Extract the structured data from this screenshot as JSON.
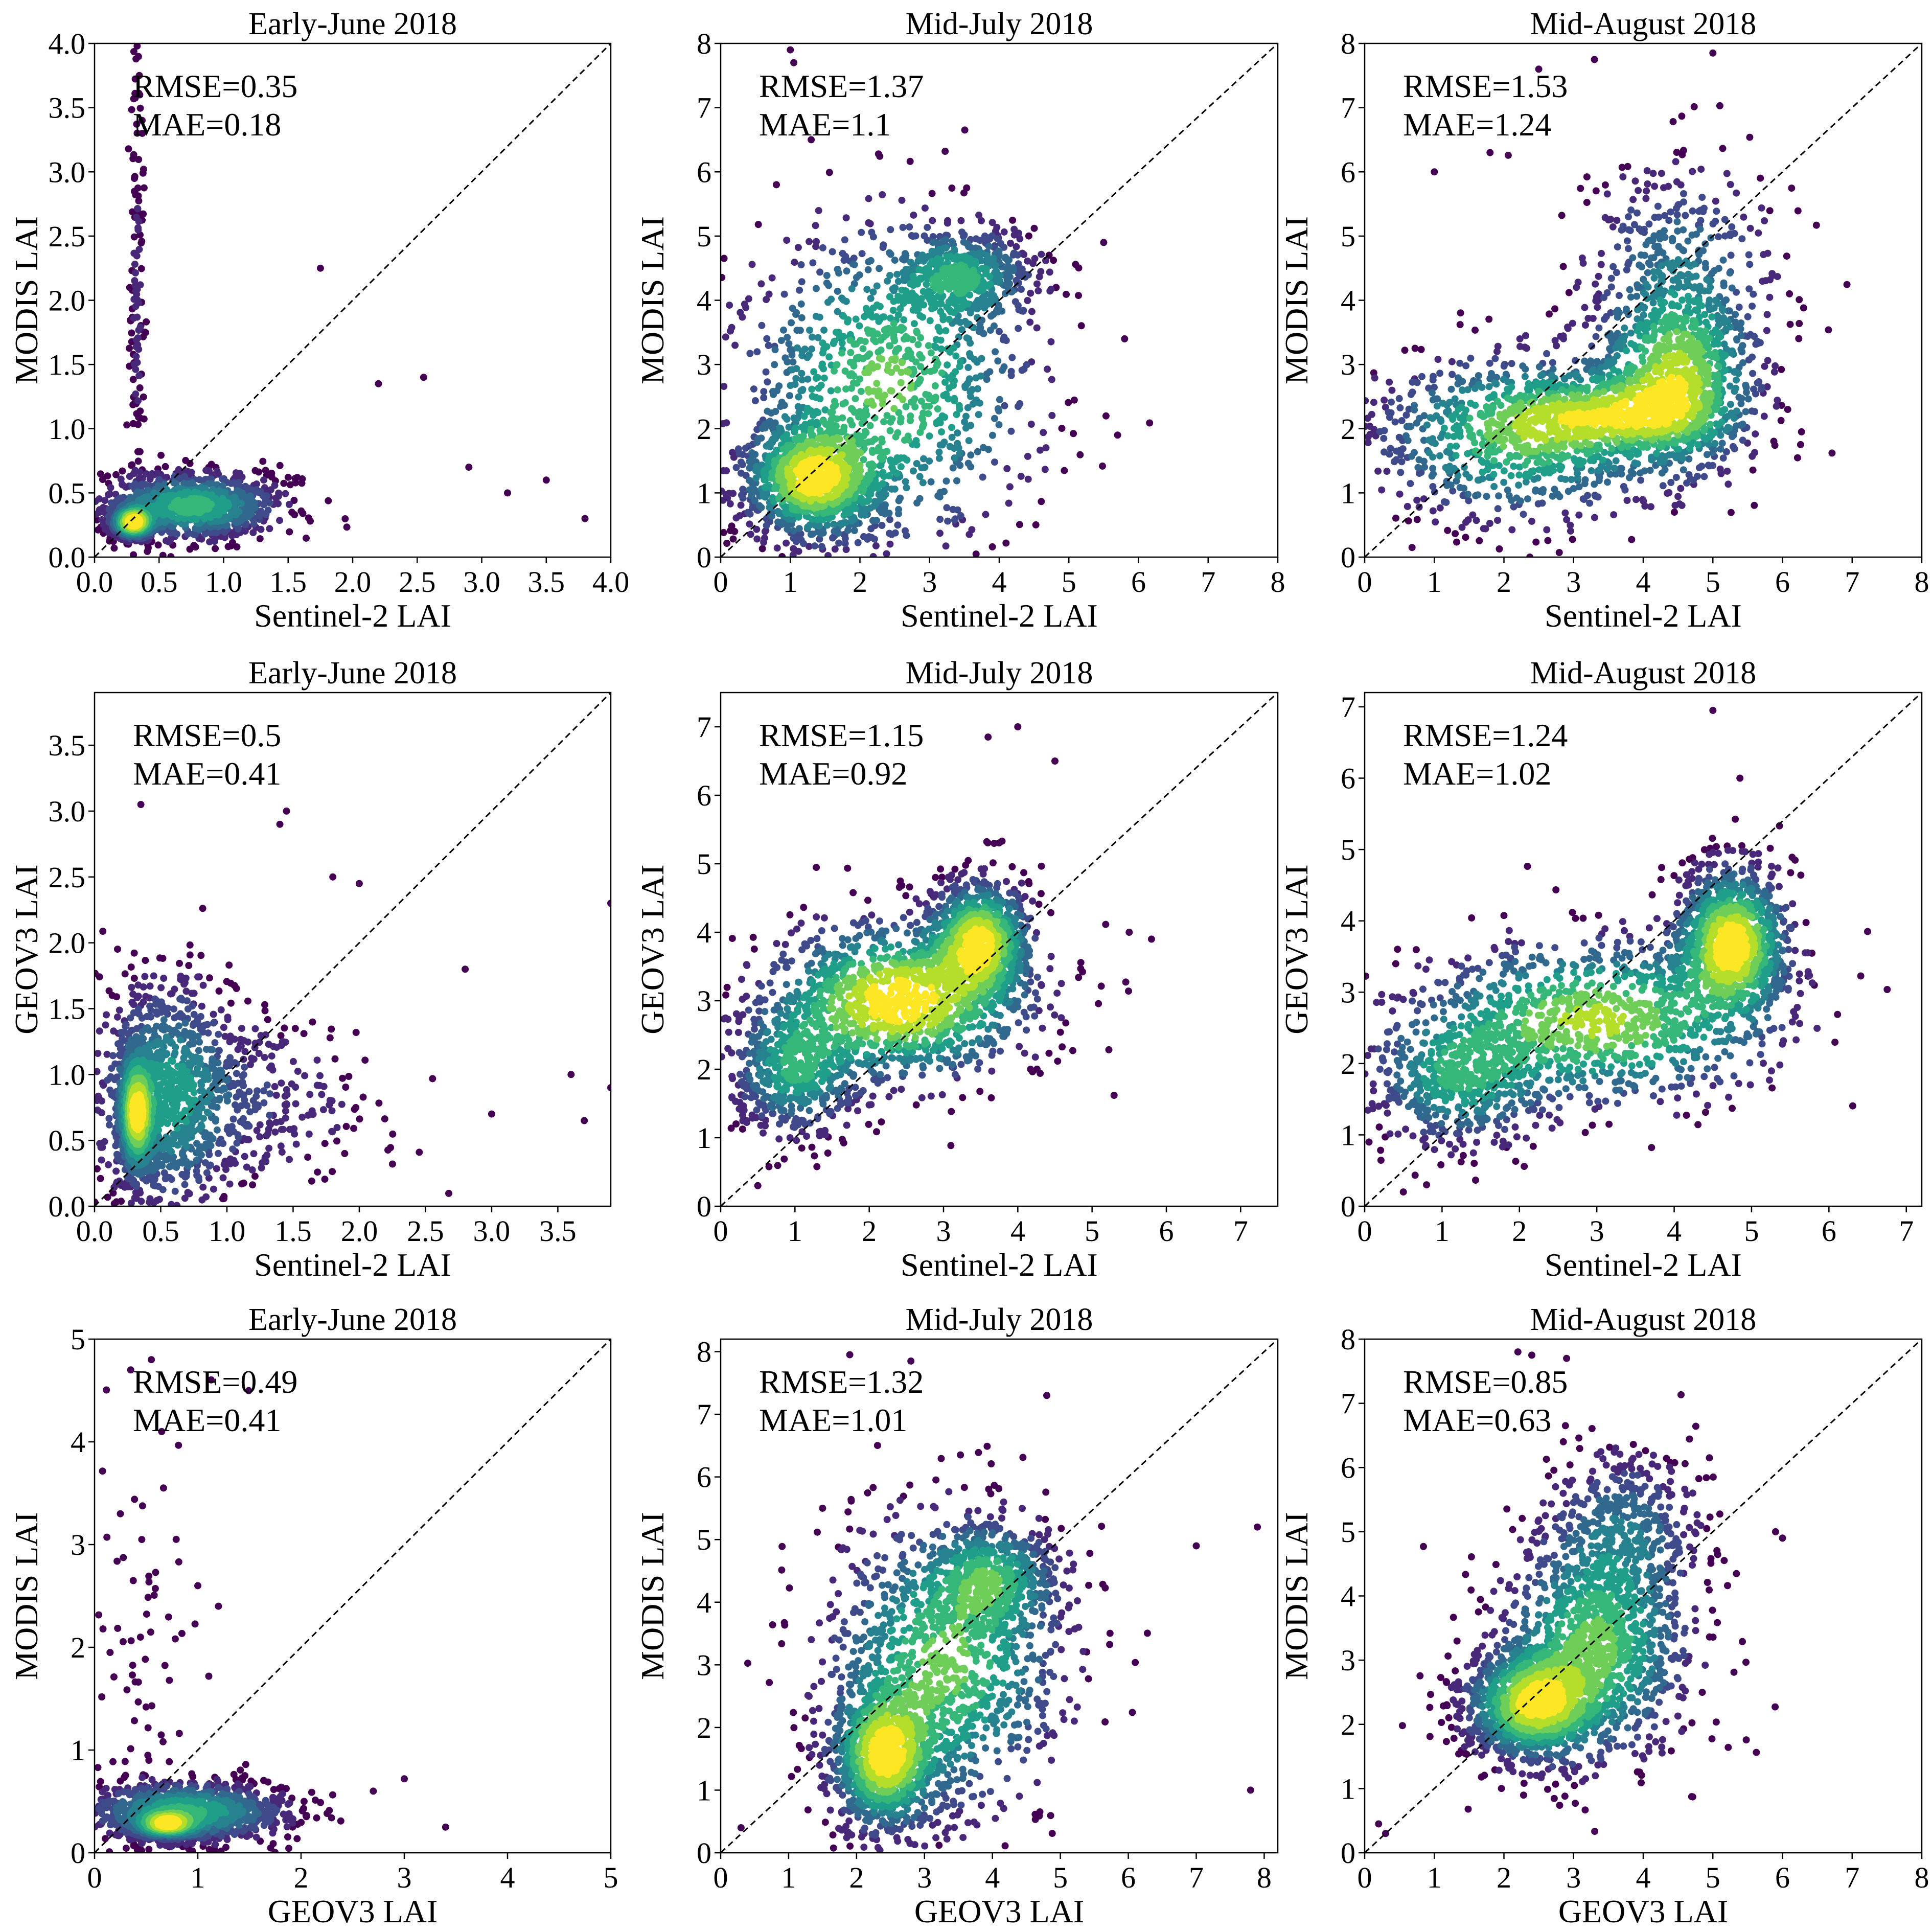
{
  "chart_data": [
    {
      "type": "scatter",
      "title": "Early-June 2018",
      "xlabel": "Sentinel-2 LAI",
      "ylabel": "MODIS LAI",
      "xlim": [
        0,
        4
      ],
      "ylim": [
        0,
        4
      ],
      "xticks": [
        "0.0",
        "0.5",
        "1.0",
        "1.5",
        "2.0",
        "2.5",
        "3.0",
        "3.5",
        "4.0"
      ],
      "yticks": [
        "0.0",
        "0.5",
        "1.0",
        "1.5",
        "2.0",
        "2.5",
        "3.0",
        "3.5",
        "4.0"
      ],
      "rmse": "RMSE=0.35",
      "mae": "MAE=0.18",
      "clusters": [
        {
          "cx": 0.3,
          "cy": 0.27,
          "sx": 0.08,
          "sy": 0.06,
          "w": 3
        },
        {
          "cx": 0.75,
          "cy": 0.4,
          "sx": 0.35,
          "sy": 0.13,
          "w": 2
        },
        {
          "cx": 0.33,
          "cy": 2.0,
          "sx": 0.03,
          "sy": 0.9,
          "w": 0.25
        }
      ],
      "outliers": [
        [
          0.33,
          3.98
        ],
        [
          0.35,
          3.6
        ],
        [
          0.37,
          3.3
        ],
        [
          0.38,
          3.02
        ],
        [
          1.75,
          2.25
        ],
        [
          2.2,
          1.35
        ],
        [
          2.55,
          1.4
        ],
        [
          3.8,
          0.3
        ],
        [
          3.5,
          0.6
        ],
        [
          3.2,
          0.5
        ],
        [
          2.9,
          0.7
        ]
      ]
    },
    {
      "type": "scatter",
      "title": "Mid-July 2018",
      "xlabel": "Sentinel-2 LAI",
      "ylabel": "MODIS LAI",
      "xlim": [
        0,
        8
      ],
      "ylim": [
        0,
        8
      ],
      "xticks": [
        "0",
        "1",
        "2",
        "3",
        "4",
        "5",
        "6",
        "7",
        "8"
      ],
      "yticks": [
        "0",
        "1",
        "2",
        "3",
        "4",
        "5",
        "6",
        "7",
        "8"
      ],
      "rmse": "RMSE=1.37",
      "mae": "MAE=1.1",
      "clusters": [
        {
          "cx": 1.3,
          "cy": 1.2,
          "sx": 0.5,
          "sy": 0.45,
          "w": 3
        },
        {
          "cx": 3.5,
          "cy": 4.4,
          "sx": 0.5,
          "sy": 0.35,
          "w": 1.5
        },
        {
          "cx": 2.4,
          "cy": 2.7,
          "sx": 1.1,
          "sy": 1.3,
          "w": 2.5
        }
      ],
      "outliers": [
        [
          1.0,
          7.9
        ],
        [
          1.05,
          7.7
        ],
        [
          1.3,
          6.5
        ],
        [
          5.7,
          1.9
        ],
        [
          5.8,
          3.4
        ],
        [
          5.5,
          4.9
        ],
        [
          0.8,
          5.8
        ],
        [
          0.2,
          0.4
        ]
      ]
    },
    {
      "type": "scatter",
      "title": "Mid-August 2018",
      "xlabel": "Sentinel-2 LAI",
      "ylabel": "MODIS LAI",
      "xlim": [
        0,
        8
      ],
      "ylim": [
        0,
        8
      ],
      "xticks": [
        "0",
        "1",
        "2",
        "3",
        "4",
        "5",
        "6",
        "7",
        "8"
      ],
      "yticks": [
        "0",
        "1",
        "2",
        "3",
        "4",
        "5",
        "6",
        "7",
        "8"
      ],
      "rmse": "RMSE=1.53",
      "mae": "MAE=1.24",
      "clusters": [
        {
          "cx": 4.5,
          "cy": 2.8,
          "sx": 0.6,
          "sy": 0.8,
          "w": 3
        },
        {
          "cx": 3.5,
          "cy": 2.2,
          "sx": 0.9,
          "sy": 0.35,
          "w": 2
        },
        {
          "cx": 2.2,
          "cy": 1.9,
          "sx": 1.1,
          "sy": 0.7,
          "w": 2.5
        },
        {
          "cx": 4.5,
          "cy": 4.6,
          "sx": 0.8,
          "sy": 0.9,
          "w": 1
        }
      ],
      "outliers": [
        [
          5.0,
          7.85
        ],
        [
          2.5,
          7.6
        ],
        [
          3.3,
          7.75
        ],
        [
          1.8,
          6.3
        ],
        [
          6.1,
          4.1
        ],
        [
          1.0,
          6.0
        ]
      ]
    },
    {
      "type": "scatter",
      "title": "Early-June 2018",
      "xlabel": "Sentinel-2 LAI",
      "ylabel": "GEOV3 LAI",
      "xlim": [
        0,
        3.9
      ],
      "ylim": [
        0,
        3.9
      ],
      "xticks": [
        "0.0",
        "0.5",
        "1.0",
        "1.5",
        "2.0",
        "2.5",
        "3.0",
        "3.5"
      ],
      "yticks": [
        "0.0",
        "0.5",
        "1.0",
        "1.5",
        "2.0",
        "2.5",
        "3.0",
        "3.5"
      ],
      "rmse": "RMSE=0.5",
      "mae": "MAE=0.41",
      "clusters": [
        {
          "cx": 0.32,
          "cy": 0.7,
          "sx": 0.06,
          "sy": 0.22,
          "w": 3
        },
        {
          "cx": 0.55,
          "cy": 0.85,
          "sx": 0.28,
          "sy": 0.45,
          "w": 2
        },
        {
          "cx": 1.3,
          "cy": 0.8,
          "sx": 0.45,
          "sy": 0.35,
          "w": 0.5
        }
      ],
      "outliers": [
        [
          0.35,
          3.05
        ],
        [
          1.45,
          3.0
        ],
        [
          1.4,
          2.9
        ],
        [
          1.8,
          2.5
        ],
        [
          2.0,
          2.45
        ],
        [
          3.9,
          2.3
        ],
        [
          3.7,
          0.65
        ],
        [
          3.6,
          1.0
        ],
        [
          3.9,
          0.9
        ],
        [
          2.8,
          1.8
        ],
        [
          3.0,
          0.7
        ]
      ]
    },
    {
      "type": "scatter",
      "title": "Mid-July 2018",
      "xlabel": "Sentinel-2 LAI",
      "ylabel": "GEOV3 LAI",
      "xlim": [
        0,
        7.5
      ],
      "ylim": [
        0,
        7.5
      ],
      "xticks": [
        "0",
        "1",
        "2",
        "3",
        "4",
        "5",
        "6",
        "7"
      ],
      "yticks": [
        "0",
        "1",
        "2",
        "3",
        "4",
        "5",
        "6",
        "7"
      ],
      "rmse": "RMSE=1.15",
      "mae": "MAE=0.92",
      "clusters": [
        {
          "cx": 3.5,
          "cy": 3.9,
          "sx": 0.35,
          "sy": 0.45,
          "w": 2.5
        },
        {
          "cx": 2.4,
          "cy": 3.0,
          "sx": 0.9,
          "sy": 0.6,
          "w": 3
        },
        {
          "cx": 1.0,
          "cy": 2.0,
          "sx": 0.45,
          "sy": 0.5,
          "w": 1.5
        }
      ],
      "outliers": [
        [
          4.0,
          7.0
        ],
        [
          3.6,
          6.85
        ],
        [
          5.8,
          3.9
        ],
        [
          5.5,
          4.0
        ],
        [
          0.5,
          0.3
        ],
        [
          4.5,
          6.5
        ]
      ]
    },
    {
      "type": "scatter",
      "title": "Mid-August 2018",
      "xlabel": "Sentinel-2 LAI",
      "ylabel": "GEOV3 LAI",
      "xlim": [
        0,
        7.2
      ],
      "ylim": [
        0,
        7.2
      ],
      "xticks": [
        "0",
        "1",
        "2",
        "3",
        "4",
        "5",
        "6",
        "7"
      ],
      "yticks": [
        "0",
        "1",
        "2",
        "3",
        "4",
        "5",
        "6",
        "7"
      ],
      "rmse": "RMSE=1.24",
      "mae": "MAE=1.02",
      "clusters": [
        {
          "cx": 4.75,
          "cy": 3.7,
          "sx": 0.38,
          "sy": 0.55,
          "w": 3
        },
        {
          "cx": 3.0,
          "cy": 2.6,
          "sx": 1.2,
          "sy": 0.6,
          "w": 2.5
        },
        {
          "cx": 1.2,
          "cy": 1.8,
          "sx": 0.6,
          "sy": 0.5,
          "w": 1.5
        }
      ],
      "outliers": [
        [
          4.5,
          6.95
        ],
        [
          4.85,
          6.0
        ],
        [
          6.5,
          3.85
        ],
        [
          0.5,
          0.2
        ],
        [
          0.8,
          0.3
        ]
      ]
    },
    {
      "type": "scatter",
      "title": "Early-June 2018",
      "xlabel": "GEOV3 LAI",
      "ylabel": "MODIS LAI",
      "xlim": [
        0,
        5
      ],
      "ylim": [
        0,
        5
      ],
      "xticks": [
        "0",
        "1",
        "2",
        "3",
        "4",
        "5"
      ],
      "yticks": [
        "0",
        "1",
        "2",
        "3",
        "4",
        "5"
      ],
      "rmse": "RMSE=0.49",
      "mae": "MAE=0.41",
      "clusters": [
        {
          "cx": 0.7,
          "cy": 0.28,
          "sx": 0.15,
          "sy": 0.06,
          "w": 3
        },
        {
          "cx": 0.9,
          "cy": 0.4,
          "sx": 0.5,
          "sy": 0.15,
          "w": 2.5
        },
        {
          "cx": 0.5,
          "cy": 2.0,
          "sx": 0.3,
          "sy": 1.2,
          "w": 0.15
        }
      ],
      "outliers": [
        [
          0.35,
          4.7
        ],
        [
          0.55,
          4.8
        ],
        [
          0.65,
          4.1
        ],
        [
          0.25,
          3.3
        ],
        [
          0.15,
          1.95
        ],
        [
          1.2,
          2.4
        ],
        [
          3.4,
          0.25
        ],
        [
          3.0,
          0.72
        ],
        [
          2.7,
          0.6
        ],
        [
          1.0,
          2.6
        ]
      ]
    },
    {
      "type": "scatter",
      "title": "Mid-July 2018",
      "xlabel": "GEOV3 LAI",
      "ylabel": "MODIS LAI",
      "xlim": [
        0,
        8.2
      ],
      "ylim": [
        0,
        8.2
      ],
      "xticks": [
        "0",
        "1",
        "2",
        "3",
        "4",
        "5",
        "6",
        "7",
        "8"
      ],
      "yticks": [
        "0",
        "1",
        "2",
        "3",
        "4",
        "5",
        "6",
        "7",
        "8"
      ],
      "rmse": "RMSE=1.32",
      "mae": "MAE=1.01",
      "clusters": [
        {
          "cx": 2.4,
          "cy": 1.5,
          "sx": 0.4,
          "sy": 0.6,
          "w": 3
        },
        {
          "cx": 4.0,
          "cy": 4.4,
          "sx": 0.5,
          "sy": 0.45,
          "w": 1.5
        },
        {
          "cx": 3.3,
          "cy": 3.0,
          "sx": 0.9,
          "sy": 1.2,
          "w": 2.5
        }
      ],
      "outliers": [
        [
          1.9,
          7.95
        ],
        [
          2.8,
          7.85
        ],
        [
          4.8,
          7.3
        ],
        [
          1.5,
          5.5
        ],
        [
          7.8,
          1.0
        ],
        [
          7.9,
          5.2
        ],
        [
          7.0,
          4.9
        ],
        [
          0.3,
          0.4
        ]
      ]
    },
    {
      "type": "scatter",
      "title": "Mid-August 2018",
      "xlabel": "GEOV3 LAI",
      "ylabel": "MODIS LAI",
      "xlim": [
        0,
        8
      ],
      "ylim": [
        0,
        8
      ],
      "xticks": [
        "0",
        "1",
        "2",
        "3",
        "4",
        "5",
        "6",
        "7",
        "8"
      ],
      "yticks": [
        "0",
        "1",
        "2",
        "3",
        "4",
        "5",
        "6",
        "7",
        "8"
      ],
      "rmse": "RMSE=0.85",
      "mae": "MAE=0.63",
      "clusters": [
        {
          "cx": 2.4,
          "cy": 2.3,
          "sx": 0.5,
          "sy": 0.45,
          "w": 3
        },
        {
          "cx": 3.3,
          "cy": 3.2,
          "sx": 0.7,
          "sy": 0.9,
          "w": 2.5
        },
        {
          "cx": 3.7,
          "cy": 5.0,
          "sx": 0.6,
          "sy": 0.7,
          "w": 1
        }
      ],
      "outliers": [
        [
          2.2,
          7.8
        ],
        [
          2.4,
          7.75
        ],
        [
          2.9,
          7.7
        ],
        [
          6.0,
          4.9
        ],
        [
          5.9,
          5.0
        ],
        [
          0.3,
          0.3
        ],
        [
          0.2,
          0.45
        ]
      ]
    }
  ],
  "colors": {
    "colormap": [
      "#440154",
      "#482878",
      "#3e4a89",
      "#31688e",
      "#26828e",
      "#1f9e89",
      "#35b779",
      "#6ece58",
      "#b5de2b",
      "#fde725"
    ],
    "identity_line": "#000000",
    "frame": "#000000",
    "background": "#ffffff"
  }
}
